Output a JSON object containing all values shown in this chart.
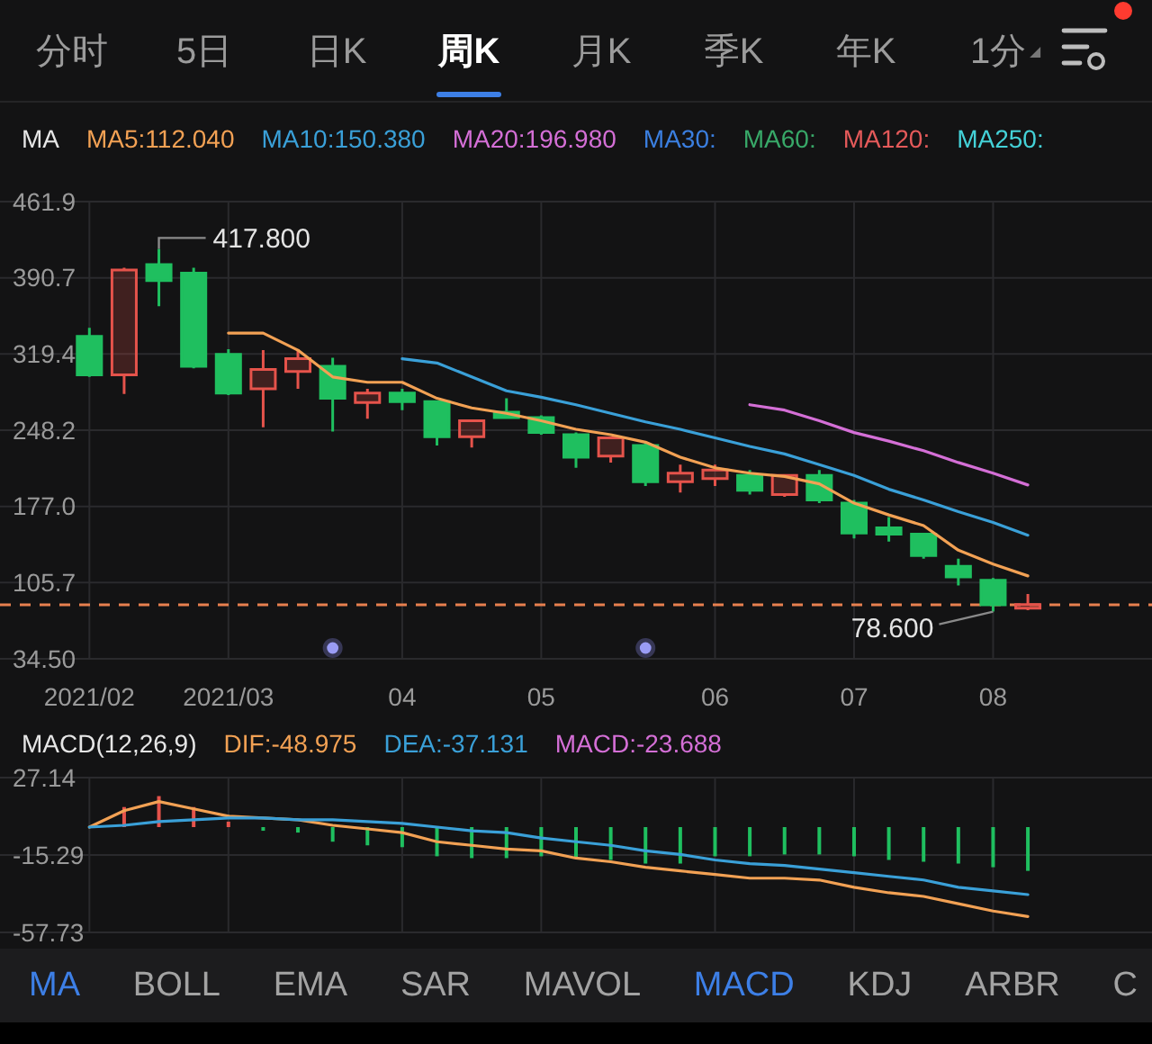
{
  "chart_data": [
    {
      "type": "other",
      "annotations": [
        "分时",
        "5日",
        "日K",
        "周K",
        "月K",
        "季K",
        "年K",
        "1分"
      ]
    },
    {
      "type": "candlestick",
      "legend_title": "MA",
      "legend": "top left",
      "grid": true,
      "x": [
        "2021-02-01",
        "2021-02-08",
        "2021-02-15",
        "2021-02-22",
        "2021-03-01",
        "2021-03-08",
        "2021-03-15",
        "2021-03-22",
        "2021-03-29",
        "2021-04-05",
        "2021-04-12",
        "2021-04-19",
        "2021-04-26",
        "2021-05-03",
        "2021-05-10",
        "2021-05-17",
        "2021-05-24",
        "2021-05-31",
        "2021-06-07",
        "2021-06-14",
        "2021-06-21",
        "2021-06-28",
        "2021-07-05",
        "2021-07-12",
        "2021-07-19",
        "2021-07-26",
        "2021-08-02",
        "2021-08-09"
      ],
      "xlim": [
        "2021-01-14",
        "2021-09-03"
      ],
      "xticks": [
        {
          "value": "2021-02-01",
          "label": "2021/02"
        },
        {
          "value": "2021-03-01",
          "label": "2021/03"
        },
        {
          "value": "2021-04-05",
          "label": "04"
        },
        {
          "value": "2021-05-03",
          "label": "05"
        },
        {
          "value": "2021-06-07",
          "label": "06"
        },
        {
          "value": "2021-07-05",
          "label": "07"
        },
        {
          "value": "2021-08-02",
          "label": "08"
        }
      ],
      "ylim": [
        34.5,
        461.9
      ],
      "yticks": [
        461.9,
        390.7,
        319.4,
        248.2,
        {
          "value": 177,
          "label": "177.0"
        },
        105.7,
        {
          "value": 34.5,
          "label": "34.50"
        }
      ],
      "ohlc": [
        [
          336,
          344,
          298,
          300
        ],
        [
          300,
          400,
          282,
          398
        ],
        [
          403,
          417.8,
          364,
          388
        ],
        [
          395,
          400,
          306,
          308
        ],
        [
          319,
          324,
          281,
          283
        ],
        [
          287,
          323,
          251,
          305
        ],
        [
          303,
          324,
          287,
          315
        ],
        [
          308,
          316,
          247,
          278
        ],
        [
          274,
          287,
          259,
          283
        ],
        [
          283,
          287,
          267,
          275
        ],
        [
          275,
          276,
          234,
          242
        ],
        [
          242,
          258,
          232,
          257
        ],
        [
          265,
          278,
          259,
          260
        ],
        [
          260,
          262,
          244,
          246
        ],
        [
          244,
          246,
          213,
          223
        ],
        [
          224,
          242,
          218,
          241
        ],
        [
          234,
          236,
          196,
          200
        ],
        [
          200,
          216,
          190,
          208
        ],
        [
          203,
          216,
          196,
          211
        ],
        [
          206,
          211,
          188,
          192
        ],
        [
          188,
          206,
          186,
          206
        ],
        [
          206,
          211,
          180,
          183
        ],
        [
          180,
          183,
          147,
          152
        ],
        [
          157,
          167,
          144,
          151
        ],
        [
          151,
          152,
          128,
          131
        ],
        [
          121,
          128,
          103,
          111
        ],
        [
          108,
          110,
          78.6,
          85
        ],
        [
          82,
          95,
          80,
          85
        ]
      ],
      "colors": [
        "#1fbf5f",
        "#e5534b",
        "#1fbf5f",
        "#1fbf5f",
        "#1fbf5f",
        "#e5534b",
        "#e5534b",
        "#1fbf5f",
        "#e5534b",
        "#1fbf5f",
        "#1fbf5f",
        "#e5534b",
        "#1fbf5f",
        "#1fbf5f",
        "#1fbf5f",
        "#e5534b",
        "#1fbf5f",
        "#e5534b",
        "#e5534b",
        "#1fbf5f",
        "#e5534b",
        "#1fbf5f",
        "#1fbf5f",
        "#1fbf5f",
        "#1fbf5f",
        "#1fbf5f",
        "#1fbf5f",
        "#e5534b"
      ],
      "series": [
        {
          "name": "MA5:112.040",
          "type": "line",
          "color": "#f2a154",
          "values": [
            null,
            null,
            null,
            null,
            339,
            339,
            323,
            298,
            293,
            293,
            278,
            269,
            264,
            257,
            249,
            244,
            237,
            223,
            213,
            208,
            205,
            198,
            180,
            169,
            159,
            136,
            123,
            112
          ]
        },
        {
          "name": "MA10:150.380",
          "type": "line",
          "color": "#3aa0d8",
          "values": [
            null,
            null,
            null,
            null,
            null,
            null,
            null,
            null,
            null,
            315,
            311,
            298,
            285,
            279,
            272,
            264,
            256,
            249,
            241,
            233,
            226,
            216,
            206,
            193,
            183,
            172,
            162,
            150
          ]
        },
        {
          "name": "MA20:196.980",
          "type": "line",
          "color": "#d46fd6",
          "values": [
            null,
            null,
            null,
            null,
            null,
            null,
            null,
            null,
            null,
            null,
            null,
            null,
            null,
            null,
            null,
            null,
            null,
            null,
            null,
            272,
            267,
            257,
            246,
            238,
            229,
            218,
            208,
            197
          ]
        },
        {
          "name": "MA30:",
          "type": "line",
          "color": "#3b7fe0",
          "values": [
            null,
            null,
            null,
            null,
            null,
            null,
            null,
            null,
            null,
            null,
            null,
            null,
            null,
            null,
            null,
            null,
            null,
            null,
            null,
            null,
            null,
            null,
            null,
            null,
            null,
            null,
            null,
            null
          ]
        },
        {
          "name": "MA60:",
          "type": "line",
          "color": "#38a868",
          "values": [
            null,
            null,
            null,
            null,
            null,
            null,
            null,
            null,
            null,
            null,
            null,
            null,
            null,
            null,
            null,
            null,
            null,
            null,
            null,
            null,
            null,
            null,
            null,
            null,
            null,
            null,
            null,
            null
          ]
        },
        {
          "name": "MA120:",
          "type": "line",
          "color": "#e45a5a",
          "values": [
            null,
            null,
            null,
            null,
            null,
            null,
            null,
            null,
            null,
            null,
            null,
            null,
            null,
            null,
            null,
            null,
            null,
            null,
            null,
            null,
            null,
            null,
            null,
            null,
            null,
            null,
            null,
            null
          ]
        },
        {
          "name": "MA250:",
          "type": "line",
          "color": "#44d2d8",
          "values": [
            null,
            null,
            null,
            null,
            null,
            null,
            null,
            null,
            null,
            null,
            null,
            null,
            null,
            null,
            null,
            null,
            null,
            null,
            null,
            null,
            null,
            null,
            null,
            null,
            null,
            null,
            null,
            null
          ]
        }
      ],
      "ref_lines": [
        {
          "axis": "y",
          "value": 85,
          "color": "#e8804f",
          "line_style": "dashed"
        }
      ],
      "annotations": [
        {
          "text": "417.800",
          "x": "2021-02-15",
          "y": 417.8
        },
        {
          "text": "78.600",
          "x": "2021-08-02",
          "y": 78.6
        }
      ]
    },
    {
      "type": "bar",
      "legend_title": "MACD(12,26,9)",
      "legend": "top left",
      "grid": true,
      "tick_labels": "y",
      "x": [
        "2021-02-01",
        "2021-02-08",
        "2021-02-15",
        "2021-02-22",
        "2021-03-01",
        "2021-03-08",
        "2021-03-15",
        "2021-03-22",
        "2021-03-29",
        "2021-04-05",
        "2021-04-12",
        "2021-04-19",
        "2021-04-26",
        "2021-05-03",
        "2021-05-10",
        "2021-05-17",
        "2021-05-24",
        "2021-05-31",
        "2021-06-07",
        "2021-06-14",
        "2021-06-21",
        "2021-06-28",
        "2021-07-05",
        "2021-07-12",
        "2021-07-19",
        "2021-07-26",
        "2021-08-02",
        "2021-08-09"
      ],
      "xlim": [
        "2021-01-14",
        "2021-09-03"
      ],
      "xticks": [
        {
          "value": "2021-02-01",
          "label": null
        },
        {
          "value": "2021-03-01",
          "label": null
        },
        {
          "value": "2021-04-05",
          "label": null
        },
        {
          "value": "2021-05-03",
          "label": null
        },
        {
          "value": "2021-06-07",
          "label": null
        },
        {
          "value": "2021-07-05",
          "label": null
        },
        {
          "value": "2021-08-02",
          "label": null
        }
      ],
      "ylim": [
        -57.73,
        27.14
      ],
      "yticks": [
        27.14,
        -15.29,
        -57.73
      ],
      "series": [
        {
          "name": "DIF:-48.975",
          "type": "line",
          "color": "#f2a154",
          "values": [
            0,
            9,
            14,
            10,
            6,
            5,
            4,
            1,
            -1,
            -3,
            -8,
            -10,
            -12,
            -13,
            -17,
            -19,
            -22,
            -24,
            -26,
            -28,
            -28,
            -29,
            -33,
            -36,
            -38,
            -42,
            -46,
            -49
          ]
        },
        {
          "name": "DEA:-37.131",
          "type": "line",
          "color": "#3aa0d8",
          "values": [
            0,
            1,
            3,
            4,
            5,
            5,
            4,
            4,
            3,
            2,
            0,
            -2,
            -3,
            -6,
            -8,
            -10,
            -13,
            -15,
            -18,
            -20,
            -21,
            -23,
            -25,
            -27,
            -29,
            -33,
            -35,
            -37
          ]
        },
        {
          "name": "MACD:-23.688",
          "type": "bar",
          "color": "#d46fd6",
          "colors": [
            null,
            "#e5534b",
            "#e5534b",
            "#e5534b",
            "#e5534b",
            "#1fbf5f",
            "#1fbf5f",
            "#1fbf5f",
            "#1fbf5f",
            "#1fbf5f",
            "#1fbf5f",
            "#1fbf5f",
            "#1fbf5f",
            "#1fbf5f",
            "#1fbf5f",
            "#1fbf5f",
            "#1fbf5f",
            "#1fbf5f",
            "#1fbf5f",
            "#1fbf5f",
            "#1fbf5f",
            "#1fbf5f",
            "#1fbf5f",
            "#1fbf5f",
            "#1fbf5f",
            "#1fbf5f",
            "#1fbf5f",
            "#1fbf5f"
          ],
          "values": [
            null,
            11,
            17,
            11,
            3,
            -2,
            -3,
            -8,
            -10,
            -11,
            -16,
            -17,
            -17,
            -16,
            -17,
            -18,
            -20,
            -20,
            -16,
            -16,
            -15,
            -15,
            -16,
            -18,
            -19,
            -20,
            -22,
            -24
          ]
        }
      ]
    },
    {
      "type": "other",
      "annotations": [
        "MA",
        "BOLL",
        "EMA",
        "SAR",
        "MAVOL",
        "MACD",
        "KDJ",
        "ARBR",
        "C"
      ]
    }
  ]
}
